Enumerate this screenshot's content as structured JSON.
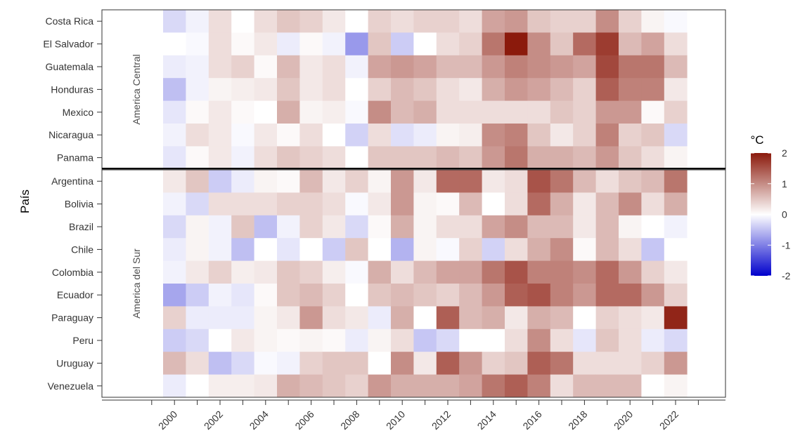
{
  "chart_data": {
    "type": "heatmap",
    "ylabel": "País",
    "xlabel": "",
    "legend": {
      "title": "°C",
      "ticks": [
        2,
        1,
        0,
        -1,
        -2
      ],
      "range": [
        -2,
        2
      ],
      "position": "right",
      "colors": {
        "low": "#0000cc",
        "mid": "#ffffff",
        "high": "#8b1a0c"
      }
    },
    "x": [
      2000,
      2001,
      2002,
      2003,
      2004,
      2005,
      2006,
      2007,
      2008,
      2009,
      2010,
      2011,
      2012,
      2013,
      2014,
      2015,
      2016,
      2017,
      2018,
      2019,
      2020,
      2021,
      2022
    ],
    "x_tick_labels": [
      "2000",
      "2002",
      "2004",
      "2006",
      "2008",
      "2010",
      "2012",
      "2014",
      "2016",
      "2018",
      "2020",
      "2022"
    ],
    "groups": [
      {
        "name": "America Central",
        "rows": [
          {
            "country": "Costa Rica",
            "values": [
              -0.3,
              -0.1,
              0.3,
              0.0,
              0.3,
              0.5,
              0.4,
              0.2,
              0.0,
              0.4,
              0.3,
              0.4,
              0.4,
              0.3,
              0.8,
              0.9,
              0.5,
              0.4,
              0.4,
              1.0,
              0.4,
              0.1,
              -0.05
            ]
          },
          {
            "country": "El Salvador",
            "values": [
              0.0,
              -0.05,
              0.3,
              0.05,
              0.2,
              -0.15,
              0.05,
              -0.1,
              -0.8,
              0.5,
              -0.4,
              0.0,
              0.3,
              0.4,
              1.2,
              2.0,
              1.0,
              0.5,
              1.3,
              1.7,
              0.6,
              0.8,
              0.3
            ]
          },
          {
            "country": "Guatemala",
            "values": [
              -0.15,
              -0.1,
              0.3,
              0.4,
              0.05,
              0.6,
              0.2,
              0.3,
              -0.1,
              0.8,
              0.9,
              0.8,
              0.6,
              0.6,
              0.9,
              1.1,
              1.0,
              0.9,
              0.8,
              1.6,
              1.2,
              1.2,
              0.6
            ]
          },
          {
            "country": "Honduras",
            "values": [
              -0.5,
              -0.1,
              0.1,
              0.15,
              0.2,
              0.5,
              0.2,
              0.3,
              0.0,
              0.4,
              0.6,
              0.5,
              0.3,
              0.2,
              0.7,
              0.9,
              0.8,
              0.6,
              0.4,
              1.4,
              1.1,
              1.1,
              0.2
            ]
          },
          {
            "country": "Mexico",
            "values": [
              -0.2,
              0.05,
              0.2,
              0.05,
              0.0,
              0.7,
              0.1,
              0.15,
              -0.05,
              1.0,
              0.6,
              0.7,
              0.3,
              0.3,
              0.3,
              0.3,
              0.3,
              0.5,
              0.4,
              0.9,
              0.9,
              0.05,
              0.4
            ]
          },
          {
            "country": "Nicaragua",
            "values": [
              -0.1,
              0.3,
              0.2,
              -0.05,
              0.2,
              0.05,
              0.3,
              0.0,
              -0.35,
              0.3,
              -0.25,
              -0.15,
              0.1,
              0.15,
              1.0,
              1.1,
              0.5,
              0.2,
              0.4,
              1.1,
              0.4,
              0.5,
              -0.3
            ]
          },
          {
            "country": "Panama",
            "values": [
              -0.2,
              0.05,
              0.2,
              -0.1,
              0.3,
              0.5,
              0.4,
              0.3,
              0.0,
              0.5,
              0.5,
              0.5,
              0.6,
              0.5,
              0.9,
              1.2,
              0.7,
              0.7,
              0.6,
              0.9,
              0.5,
              0.3,
              0.1
            ]
          }
        ]
      },
      {
        "name": "America del Sur",
        "rows": [
          {
            "country": "Argentina",
            "values": [
              0.2,
              0.5,
              -0.4,
              -0.15,
              0.1,
              0.05,
              0.6,
              0.2,
              0.4,
              0.1,
              0.9,
              0.2,
              1.3,
              1.3,
              0.2,
              0.3,
              1.5,
              1.2,
              0.6,
              0.3,
              0.5,
              0.6,
              1.2
            ]
          },
          {
            "country": "Bolivia",
            "values": [
              -0.1,
              -0.3,
              0.3,
              0.3,
              0.3,
              0.4,
              0.4,
              0.3,
              -0.05,
              0.2,
              0.9,
              0.1,
              0.05,
              0.6,
              0.0,
              0.3,
              1.3,
              0.7,
              0.2,
              0.6,
              1.0,
              0.3,
              0.7
            ]
          },
          {
            "country": "Brazil",
            "values": [
              -0.3,
              0.1,
              -0.1,
              0.5,
              -0.5,
              -0.1,
              0.4,
              0.2,
              -0.3,
              0.05,
              0.7,
              0.1,
              0.3,
              0.3,
              0.8,
              1.0,
              0.6,
              0.6,
              0.2,
              0.6,
              0.1,
              0.0,
              -0.1
            ]
          },
          {
            "country": "Chile",
            "values": [
              -0.15,
              0.1,
              -0.1,
              -0.5,
              0.0,
              -0.2,
              0.0,
              -0.4,
              0.5,
              0.0,
              -0.6,
              0.1,
              -0.05,
              0.4,
              -0.35,
              0.3,
              0.7,
              1.0,
              0.05,
              0.6,
              0.3,
              -0.45,
              0.0
            ]
          },
          {
            "country": "Colombia",
            "values": [
              -0.1,
              0.2,
              0.4,
              0.15,
              0.2,
              0.5,
              0.4,
              0.15,
              -0.05,
              0.7,
              0.3,
              0.6,
              0.8,
              0.8,
              1.2,
              1.5,
              1.1,
              1.1,
              1.0,
              1.3,
              0.9,
              0.4,
              0.2
            ]
          },
          {
            "country": "Ecuador",
            "values": [
              -0.7,
              -0.4,
              -0.1,
              -0.2,
              0.05,
              0.5,
              0.6,
              0.4,
              0.0,
              0.5,
              0.6,
              0.5,
              0.4,
              0.6,
              0.9,
              1.4,
              1.5,
              1.1,
              0.9,
              1.3,
              1.3,
              0.9,
              0.4
            ]
          },
          {
            "country": "Paraguay",
            "values": [
              0.4,
              -0.15,
              -0.15,
              -0.15,
              0.1,
              0.2,
              0.9,
              0.3,
              0.2,
              -0.15,
              0.7,
              0.0,
              1.4,
              0.6,
              0.7,
              0.2,
              0.7,
              0.6,
              0.0,
              0.4,
              0.3,
              0.2,
              1.9
            ]
          },
          {
            "country": "Peru",
            "values": [
              -0.4,
              -0.3,
              0.0,
              0.2,
              0.1,
              0.05,
              0.1,
              0.05,
              -0.15,
              0.1,
              0.3,
              -0.45,
              -0.3,
              0.0,
              0.0,
              0.3,
              1.0,
              0.3,
              -0.2,
              0.5,
              0.3,
              -0.15,
              -0.3
            ]
          },
          {
            "country": "Uruguay",
            "values": [
              0.6,
              0.3,
              -0.5,
              -0.3,
              -0.05,
              -0.1,
              0.4,
              0.5,
              0.5,
              0.0,
              1.0,
              0.2,
              1.4,
              0.9,
              0.4,
              0.5,
              1.4,
              1.2,
              0.3,
              0.3,
              0.3,
              0.4,
              0.9
            ]
          },
          {
            "country": "Venezuela",
            "values": [
              -0.15,
              0.0,
              0.15,
              0.15,
              0.2,
              0.7,
              0.6,
              0.5,
              0.4,
              0.9,
              0.7,
              0.7,
              0.7,
              0.8,
              1.2,
              1.4,
              1.1,
              0.3,
              0.6,
              0.6,
              0.6,
              0.0,
              0.1
            ]
          }
        ]
      }
    ]
  }
}
